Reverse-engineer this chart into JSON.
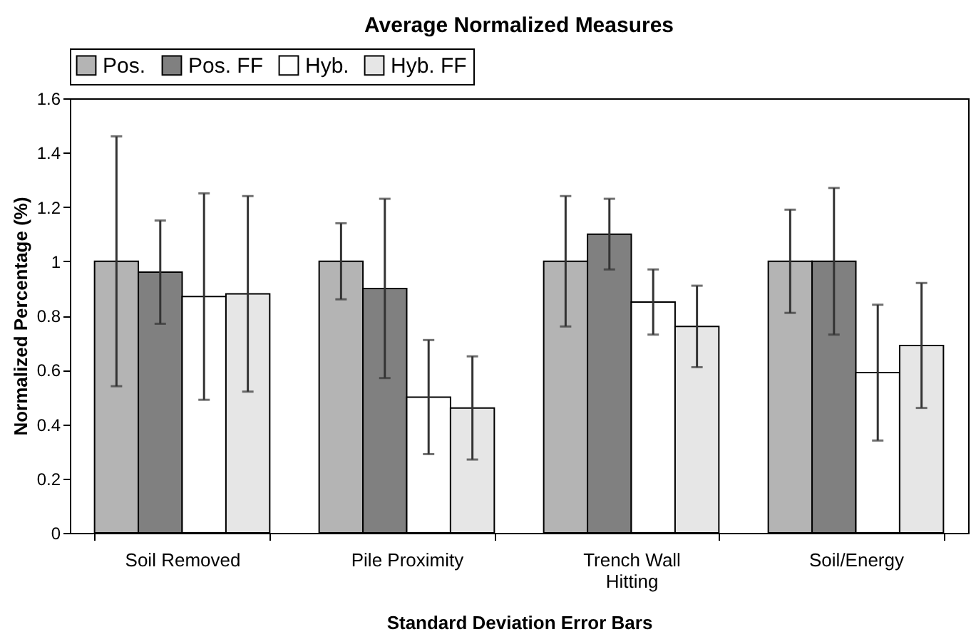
{
  "chart_data": {
    "type": "bar",
    "title": "Average Normalized Measures",
    "xlabel": "Standard Deviation Error Bars",
    "ylabel": "Normalized Percentage (%)",
    "categories": [
      "Soil Removed",
      "Pile Proximity",
      "Trench Wall Hitting",
      "Soil/Energy"
    ],
    "series": [
      {
        "name": "Pos.",
        "color": "#b4b4b4",
        "values": [
          1.0,
          1.0,
          1.0,
          1.0
        ],
        "errors": [
          0.46,
          0.14,
          0.24,
          0.19
        ]
      },
      {
        "name": "Pos. FF",
        "color": "#808080",
        "values": [
          0.96,
          0.9,
          1.1,
          1.0
        ],
        "errors": [
          0.19,
          0.33,
          0.13,
          0.27
        ]
      },
      {
        "name": "Hyb.",
        "color": "#ffffff",
        "values": [
          0.87,
          0.5,
          0.85,
          0.59
        ],
        "errors": [
          0.38,
          0.21,
          0.12,
          0.25
        ]
      },
      {
        "name": "Hyb. FF",
        "color": "#e6e6e6",
        "values": [
          0.88,
          0.46,
          0.76,
          0.69
        ],
        "errors": [
          0.36,
          0.19,
          0.15,
          0.23
        ]
      }
    ],
    "ylim": [
      0,
      1.6
    ],
    "yticks": [
      0,
      0.2,
      0.4,
      0.6,
      0.8,
      1,
      1.2,
      1.4,
      1.6
    ],
    "grid": false,
    "legend": "top"
  }
}
